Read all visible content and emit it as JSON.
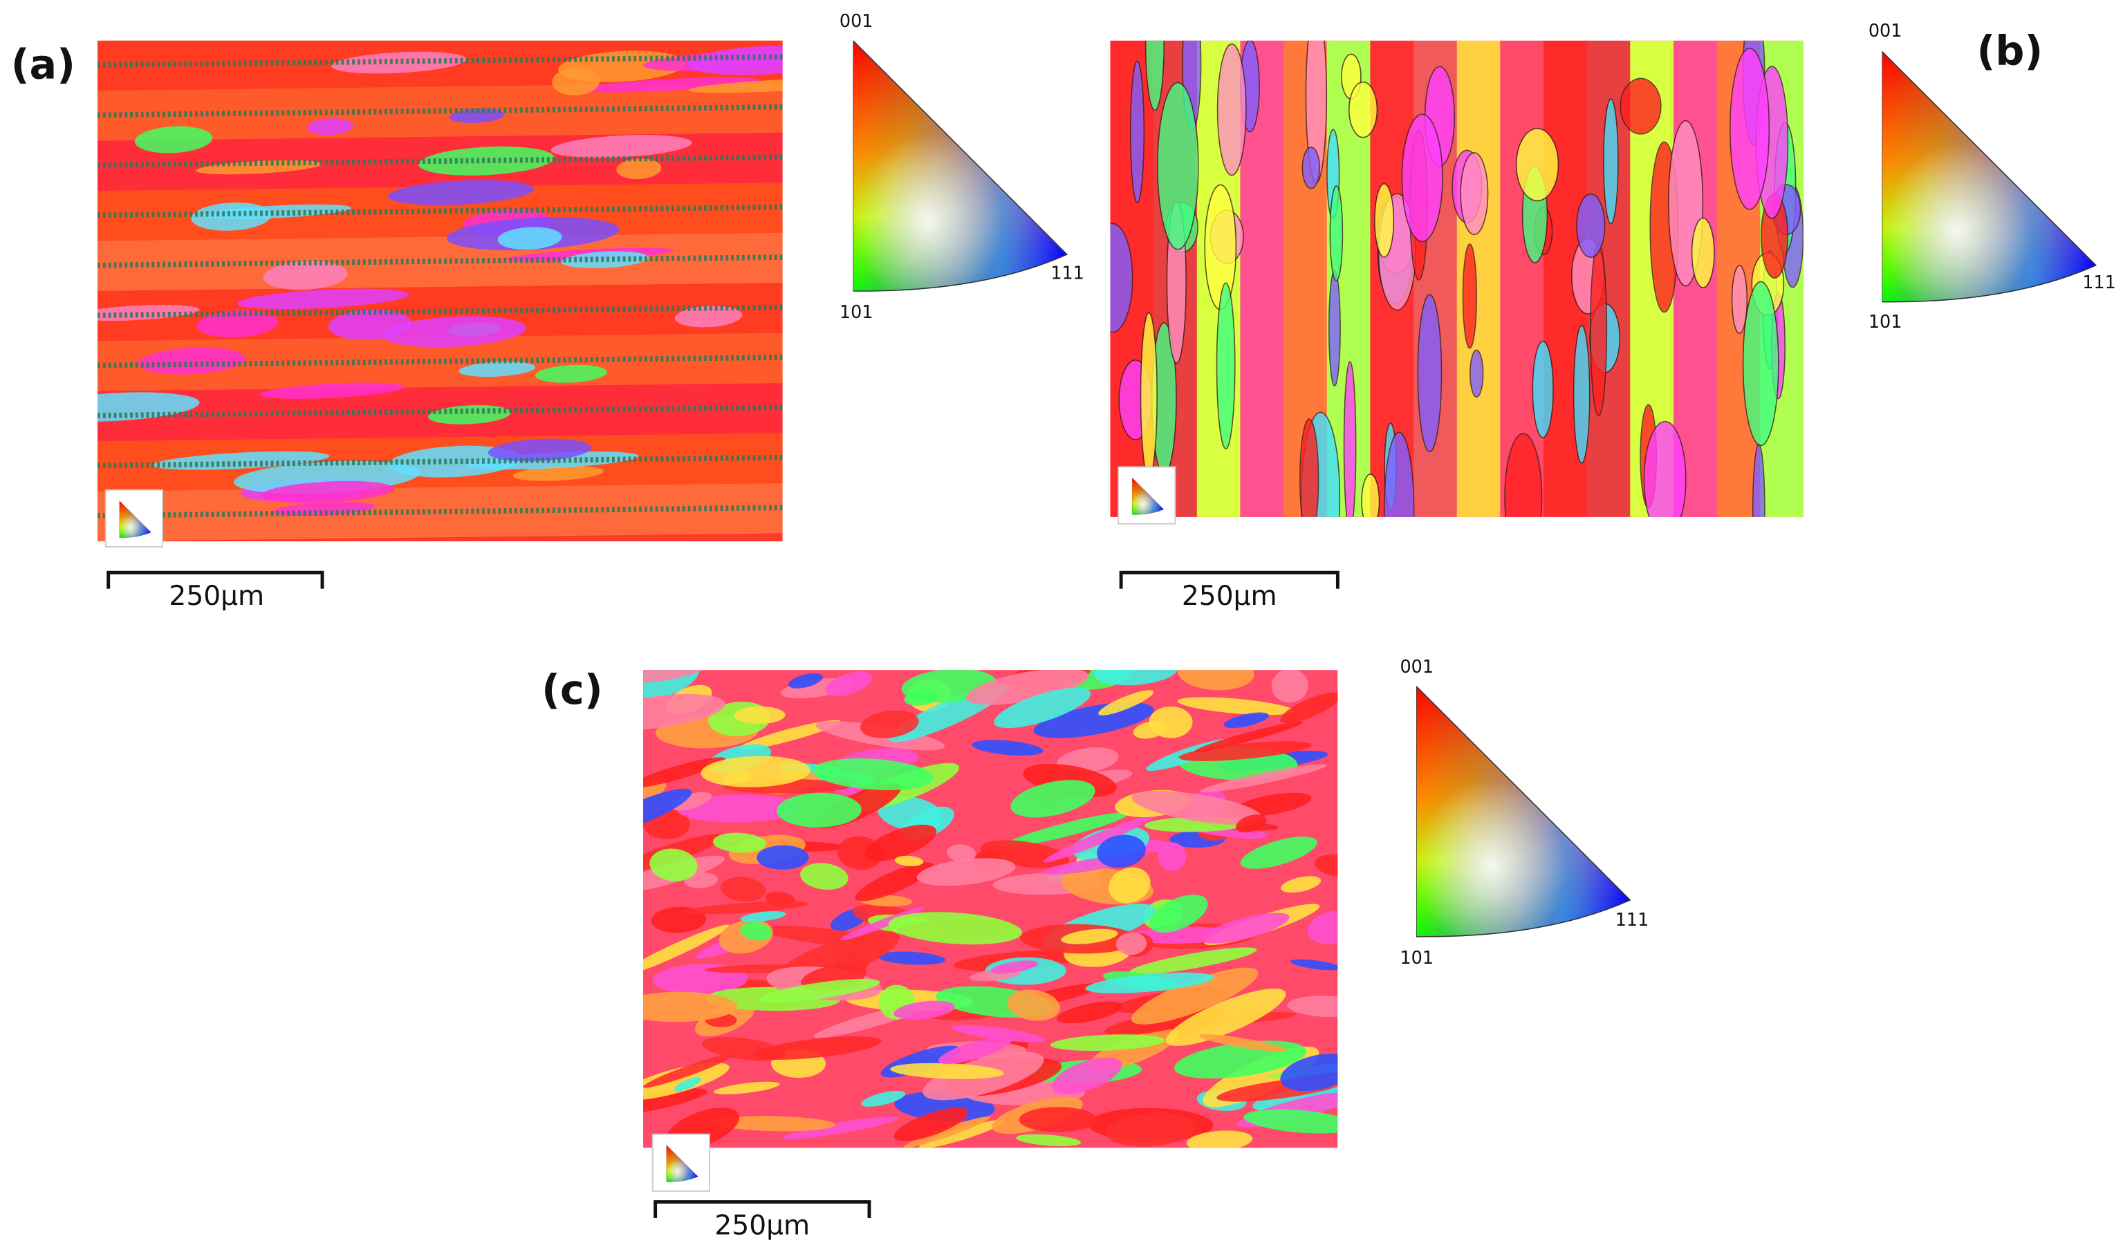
{
  "panels": [
    {
      "label": "(a)",
      "scale_bar": "250µm",
      "legend": {
        "top": "001",
        "left": "101",
        "right": "111"
      }
    },
    {
      "label": "(b)",
      "scale_bar": "250µm",
      "legend": {
        "top": "001",
        "left": "101",
        "right": "111"
      }
    },
    {
      "label": "(c)",
      "scale_bar": "250µm",
      "legend": {
        "top": "001",
        "left": "101",
        "right": "111"
      }
    }
  ]
}
